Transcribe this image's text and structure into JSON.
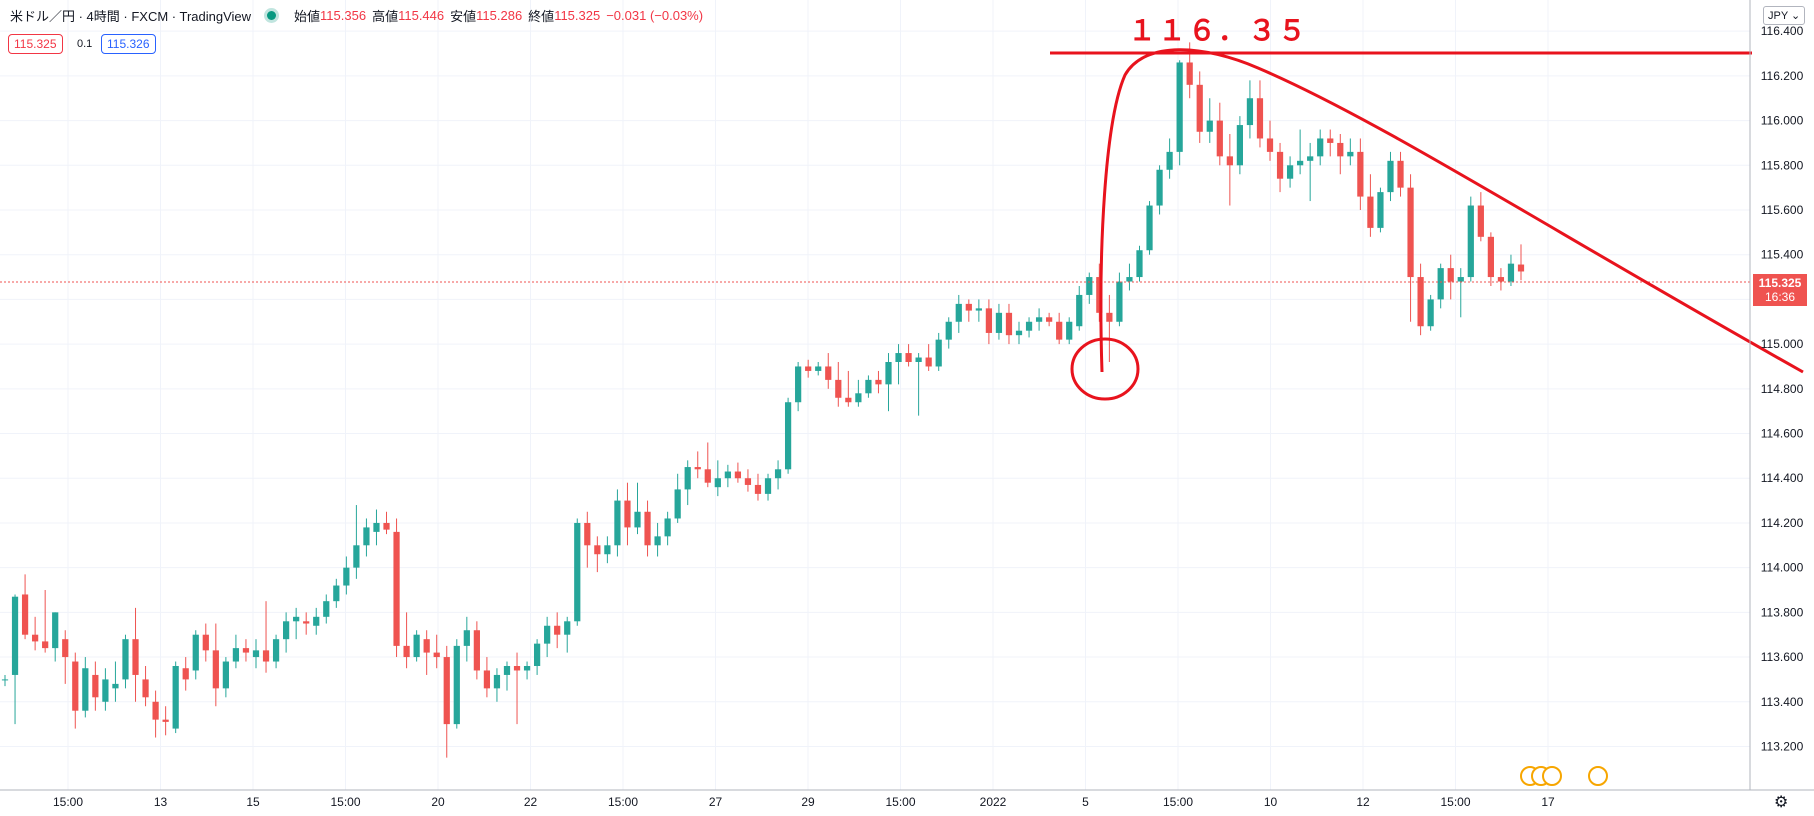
{
  "legend": {
    "title": "米ドル／円 · 4時間 · FXCM · TradingView",
    "open_label": "始値",
    "open": "115.356",
    "high_label": "高値",
    "high": "115.446",
    "low_label": "安値",
    "low": "115.286",
    "close_label": "終値",
    "close": "115.325",
    "change": "−0.031 (−0.03%)"
  },
  "quotes": {
    "bid": "115.325",
    "spread": "0.1",
    "ask": "115.326"
  },
  "currency": "JPY",
  "price_tag": {
    "price": "115.325",
    "countdown": "16:36"
  },
  "annotation": {
    "text": "１１６．３５",
    "level": 116.35
  },
  "colors": {
    "up": "#26a69a",
    "down": "#ef5350",
    "annotation": "#e8131d",
    "grid": "#f0f3fa"
  },
  "icons": {
    "settings": "gear-icon",
    "events": "us-flag-event-icon"
  },
  "chart_data": {
    "type": "candlestick",
    "ylim": [
      113.05,
      116.45
    ],
    "yticks": [
      "113.200",
      "113.400",
      "113.600",
      "113.800",
      "114.000",
      "114.200",
      "114.400",
      "114.600",
      "114.800",
      "115.000",
      "115.200",
      "115.400",
      "115.600",
      "115.800",
      "116.000",
      "116.200",
      "116.400"
    ],
    "xticks": [
      "15:00",
      "13",
      "15",
      "15:00",
      "20",
      "22",
      "15:00",
      "27",
      "29",
      "15:00",
      "2022",
      "5",
      "15:00",
      "10",
      "12",
      "15:00",
      "17"
    ],
    "ohlc": [
      [
        113.5,
        113.52,
        113.47,
        113.5
      ],
      [
        113.52,
        113.88,
        113.3,
        113.87
      ],
      [
        113.88,
        113.97,
        113.68,
        113.7
      ],
      [
        113.7,
        113.78,
        113.63,
        113.67
      ],
      [
        113.67,
        113.9,
        113.62,
        113.64
      ],
      [
        113.64,
        113.8,
        113.58,
        113.8
      ],
      [
        113.68,
        113.72,
        113.48,
        113.6
      ],
      [
        113.58,
        113.62,
        113.28,
        113.36
      ],
      [
        113.36,
        113.6,
        113.33,
        113.55
      ],
      [
        113.52,
        113.58,
        113.36,
        113.42
      ],
      [
        113.4,
        113.55,
        113.36,
        113.5
      ],
      [
        113.46,
        113.58,
        113.4,
        113.48
      ],
      [
        113.5,
        113.7,
        113.46,
        113.68
      ],
      [
        113.68,
        113.82,
        113.4,
        113.52
      ],
      [
        113.5,
        113.56,
        113.38,
        113.42
      ],
      [
        113.4,
        113.45,
        113.24,
        113.32
      ],
      [
        113.32,
        113.38,
        113.25,
        113.31
      ],
      [
        113.28,
        113.58,
        113.26,
        113.56
      ],
      [
        113.55,
        113.6,
        113.45,
        113.5
      ],
      [
        113.54,
        113.72,
        113.5,
        113.7
      ],
      [
        113.7,
        113.75,
        113.58,
        113.63
      ],
      [
        113.63,
        113.75,
        113.38,
        113.46
      ],
      [
        113.46,
        113.6,
        113.42,
        113.58
      ],
      [
        113.58,
        113.7,
        113.55,
        113.64
      ],
      [
        113.64,
        113.68,
        113.58,
        113.62
      ],
      [
        113.6,
        113.68,
        113.55,
        113.63
      ],
      [
        113.63,
        113.85,
        113.53,
        113.58
      ],
      [
        113.58,
        113.7,
        113.55,
        113.68
      ],
      [
        113.68,
        113.8,
        113.62,
        113.76
      ],
      [
        113.76,
        113.82,
        113.68,
        113.78
      ],
      [
        113.76,
        113.8,
        113.7,
        113.75
      ],
      [
        113.74,
        113.82,
        113.7,
        113.78
      ],
      [
        113.78,
        113.88,
        113.75,
        113.85
      ],
      [
        113.85,
        113.95,
        113.82,
        113.92
      ],
      [
        113.92,
        114.05,
        113.88,
        114.0
      ],
      [
        114.0,
        114.28,
        113.95,
        114.1
      ],
      [
        114.1,
        114.22,
        114.05,
        114.18
      ],
      [
        114.16,
        114.26,
        114.1,
        114.2
      ],
      [
        114.2,
        114.25,
        114.15,
        114.17
      ],
      [
        114.16,
        114.22,
        113.6,
        113.65
      ],
      [
        113.65,
        113.8,
        113.55,
        113.6
      ],
      [
        113.6,
        113.72,
        113.58,
        113.7
      ],
      [
        113.68,
        113.72,
        113.52,
        113.62
      ],
      [
        113.62,
        113.7,
        113.55,
        113.6
      ],
      [
        113.6,
        113.65,
        113.15,
        113.3
      ],
      [
        113.3,
        113.68,
        113.28,
        113.65
      ],
      [
        113.65,
        113.78,
        113.58,
        113.72
      ],
      [
        113.72,
        113.76,
        113.5,
        113.54
      ],
      [
        113.54,
        113.6,
        113.42,
        113.46
      ],
      [
        113.46,
        113.55,
        113.4,
        113.52
      ],
      [
        113.52,
        113.58,
        113.45,
        113.56
      ],
      [
        113.56,
        113.62,
        113.3,
        113.54
      ],
      [
        113.54,
        113.58,
        113.5,
        113.56
      ],
      [
        113.56,
        113.68,
        113.52,
        113.66
      ],
      [
        113.66,
        113.78,
        113.6,
        113.74
      ],
      [
        113.74,
        113.8,
        113.64,
        113.7
      ],
      [
        113.7,
        113.78,
        113.62,
        113.76
      ],
      [
        113.76,
        114.22,
        113.74,
        114.2
      ],
      [
        114.2,
        114.25,
        114.0,
        114.1
      ],
      [
        114.1,
        114.14,
        113.98,
        114.06
      ],
      [
        114.06,
        114.14,
        114.02,
        114.1
      ],
      [
        114.1,
        114.35,
        114.05,
        114.3
      ],
      [
        114.3,
        114.38,
        114.1,
        114.18
      ],
      [
        114.18,
        114.38,
        114.15,
        114.25
      ],
      [
        114.25,
        114.3,
        114.05,
        114.1
      ],
      [
        114.1,
        114.2,
        114.05,
        114.14
      ],
      [
        114.14,
        114.25,
        114.1,
        114.22
      ],
      [
        114.22,
        114.42,
        114.2,
        114.35
      ],
      [
        114.35,
        114.48,
        114.28,
        114.45
      ],
      [
        114.45,
        114.52,
        114.4,
        114.44
      ],
      [
        114.44,
        114.56,
        114.36,
        114.38
      ],
      [
        114.36,
        114.48,
        114.32,
        114.4
      ],
      [
        114.4,
        114.46,
        114.36,
        114.43
      ],
      [
        114.43,
        114.47,
        114.38,
        114.4
      ],
      [
        114.4,
        114.44,
        114.34,
        114.37
      ],
      [
        114.37,
        114.42,
        114.3,
        114.33
      ],
      [
        114.33,
        114.42,
        114.3,
        114.4
      ],
      [
        114.4,
        114.48,
        114.35,
        114.44
      ],
      [
        114.44,
        114.76,
        114.42,
        114.74
      ],
      [
        114.74,
        114.92,
        114.7,
        114.9
      ],
      [
        114.9,
        114.93,
        114.85,
        114.88
      ],
      [
        114.88,
        114.92,
        114.86,
        114.9
      ],
      [
        114.9,
        114.96,
        114.8,
        114.84
      ],
      [
        114.84,
        114.92,
        114.72,
        114.76
      ],
      [
        114.76,
        114.88,
        114.72,
        114.74
      ],
      [
        114.74,
        114.84,
        114.72,
        114.78
      ],
      [
        114.78,
        114.86,
        114.76,
        114.84
      ],
      [
        114.84,
        114.88,
        114.78,
        114.82
      ],
      [
        114.82,
        114.96,
        114.7,
        114.92
      ],
      [
        114.92,
        115.0,
        114.82,
        114.96
      ],
      [
        114.96,
        115.0,
        114.9,
        114.92
      ],
      [
        114.92,
        114.96,
        114.68,
        114.94
      ],
      [
        114.94,
        115.0,
        114.88,
        114.9
      ],
      [
        114.9,
        115.05,
        114.88,
        115.02
      ],
      [
        115.02,
        115.12,
        114.98,
        115.1
      ],
      [
        115.1,
        115.22,
        115.05,
        115.18
      ],
      [
        115.18,
        115.2,
        115.1,
        115.15
      ],
      [
        115.15,
        115.2,
        115.1,
        115.16
      ],
      [
        115.16,
        115.2,
        115.0,
        115.05
      ],
      [
        115.05,
        115.18,
        115.02,
        115.14
      ],
      [
        115.14,
        115.18,
        115.0,
        115.04
      ],
      [
        115.04,
        115.1,
        115.0,
        115.06
      ],
      [
        115.06,
        115.12,
        115.03,
        115.1
      ],
      [
        115.1,
        115.16,
        115.06,
        115.12
      ],
      [
        115.12,
        115.14,
        115.08,
        115.1
      ],
      [
        115.1,
        115.14,
        115.0,
        115.02
      ],
      [
        115.02,
        115.12,
        115.0,
        115.1
      ],
      [
        115.08,
        115.26,
        115.06,
        115.22
      ],
      [
        115.22,
        115.32,
        115.18,
        115.3
      ],
      [
        115.3,
        115.36,
        115.1,
        115.14
      ],
      [
        115.14,
        115.22,
        114.92,
        115.1
      ],
      [
        115.1,
        115.32,
        115.08,
        115.28
      ],
      [
        115.28,
        115.36,
        115.24,
        115.3
      ],
      [
        115.3,
        115.44,
        115.28,
        115.42
      ],
      [
        115.42,
        115.64,
        115.4,
        115.62
      ],
      [
        115.62,
        115.8,
        115.58,
        115.78
      ],
      [
        115.78,
        115.92,
        115.74,
        115.86
      ],
      [
        115.86,
        116.27,
        115.8,
        116.26
      ],
      [
        116.26,
        116.35,
        116.1,
        116.16
      ],
      [
        116.16,
        116.22,
        115.9,
        115.95
      ],
      [
        115.95,
        116.1,
        115.9,
        116.0
      ],
      [
        116.0,
        116.08,
        115.8,
        115.84
      ],
      [
        115.84,
        115.94,
        115.62,
        115.8
      ],
      [
        115.8,
        116.02,
        115.76,
        115.98
      ],
      [
        115.98,
        116.18,
        115.92,
        116.1
      ],
      [
        116.1,
        116.18,
        115.88,
        115.92
      ],
      [
        115.92,
        116.0,
        115.82,
        115.86
      ],
      [
        115.86,
        115.9,
        115.68,
        115.74
      ],
      [
        115.74,
        115.84,
        115.7,
        115.8
      ],
      [
        115.8,
        115.96,
        115.76,
        115.82
      ],
      [
        115.82,
        115.9,
        115.64,
        115.84
      ],
      [
        115.84,
        115.96,
        115.8,
        115.92
      ],
      [
        115.92,
        115.96,
        115.84,
        115.9
      ],
      [
        115.9,
        115.94,
        115.76,
        115.84
      ],
      [
        115.84,
        115.92,
        115.8,
        115.86
      ],
      [
        115.86,
        115.92,
        115.6,
        115.66
      ],
      [
        115.66,
        115.76,
        115.48,
        115.52
      ],
      [
        115.52,
        115.7,
        115.5,
        115.68
      ],
      [
        115.68,
        115.86,
        115.64,
        115.82
      ],
      [
        115.82,
        115.86,
        115.66,
        115.7
      ],
      [
        115.7,
        115.76,
        115.1,
        115.3
      ],
      [
        115.3,
        115.36,
        115.04,
        115.08
      ],
      [
        115.08,
        115.22,
        115.06,
        115.2
      ],
      [
        115.2,
        115.36,
        115.16,
        115.34
      ],
      [
        115.34,
        115.4,
        115.2,
        115.28
      ],
      [
        115.28,
        115.34,
        115.12,
        115.3
      ],
      [
        115.3,
        115.66,
        115.28,
        115.62
      ],
      [
        115.62,
        115.68,
        115.46,
        115.48
      ],
      [
        115.48,
        115.5,
        115.26,
        115.3
      ],
      [
        115.3,
        115.34,
        115.24,
        115.28
      ],
      [
        115.28,
        115.4,
        115.26,
        115.36
      ],
      [
        115.356,
        115.446,
        115.286,
        115.325
      ]
    ]
  }
}
